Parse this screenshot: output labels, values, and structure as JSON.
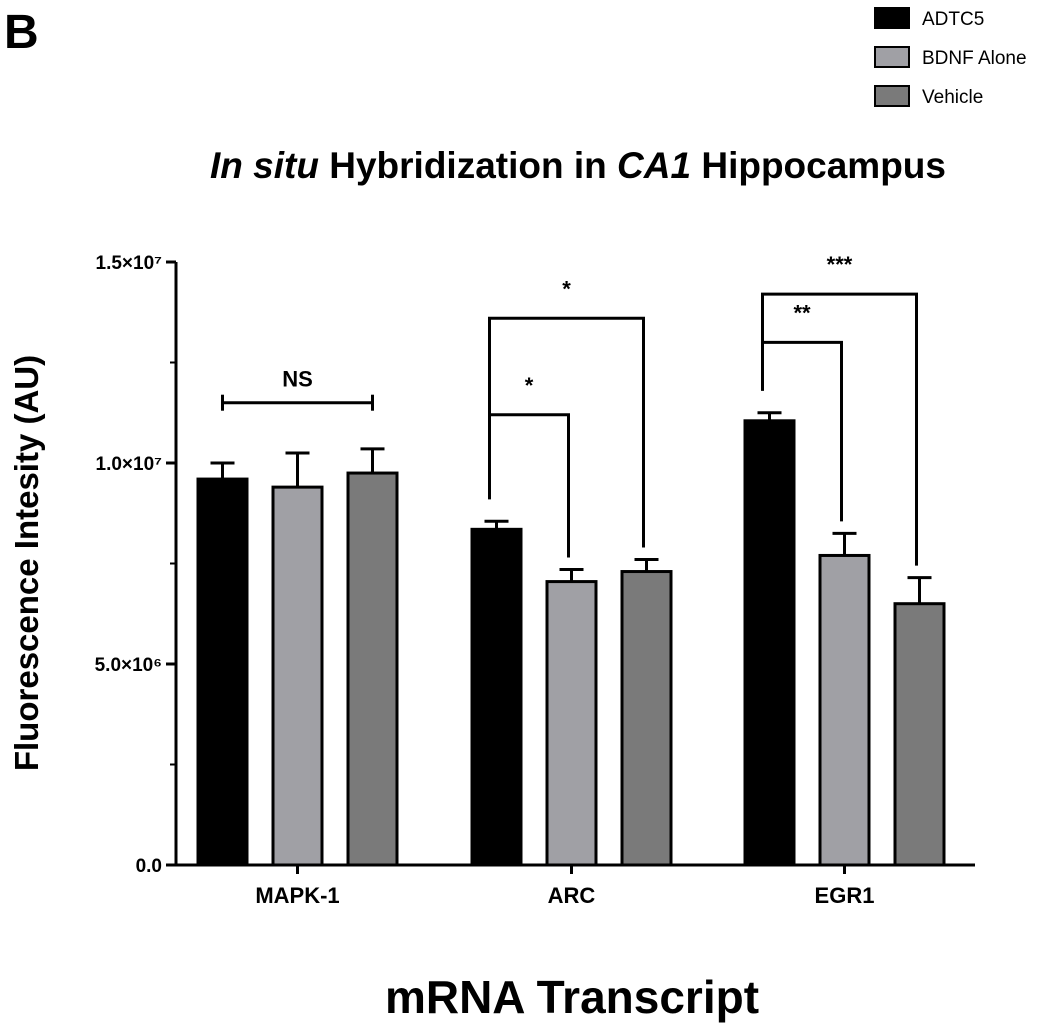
{
  "panel_label": "B",
  "chart_data": {
    "type": "bar",
    "title": {
      "part1": "In situ",
      "part2": " Hybridization in ",
      "part3": "CA1",
      "part4": " Hippocampus"
    },
    "xlabel": "mRNA Transcript",
    "ylabel": "Fluorescence Intesity (AU)",
    "ylim": [
      0,
      15000000
    ],
    "yticks": [
      {
        "value": 0,
        "label": "0.0"
      },
      {
        "value": 5000000,
        "label": "5.0×10⁶"
      },
      {
        "value": 10000000,
        "label": "1.0×10⁷"
      },
      {
        "value": 15000000,
        "label": "1.5×10⁷"
      }
    ],
    "categories": [
      "MAPK-1",
      "ARC",
      "EGR1"
    ],
    "series": [
      {
        "name": "ADTC5",
        "color": "#000000",
        "values": [
          9600000,
          8350000,
          11050000
        ],
        "errors": [
          400000,
          200000,
          200000
        ]
      },
      {
        "name": "BDNF Alone",
        "color": "#a0a0a5",
        "values": [
          9400000,
          7050000,
          7700000
        ],
        "errors": [
          850000,
          300000,
          550000
        ]
      },
      {
        "name": "Vehicle",
        "color": "#7a7a7a",
        "values": [
          9750000,
          7300000,
          6500000
        ],
        "errors": [
          600000,
          300000,
          650000
        ]
      }
    ],
    "legend_position": "top-right",
    "annotations": [
      {
        "type": "bracket-flat",
        "category": 0,
        "from_series": 0,
        "to_series": 2,
        "y": 11500000,
        "label": "NS"
      },
      {
        "type": "bracket-step",
        "category": 1,
        "from_series": 0,
        "to_series": 1,
        "y": 11200000,
        "label": "*"
      },
      {
        "type": "bracket-step",
        "category": 1,
        "from_series": 0,
        "to_series": 2,
        "y": 13600000,
        "label": "*"
      },
      {
        "type": "bracket-step",
        "category": 2,
        "from_series": 0,
        "to_series": 1,
        "y": 13000000,
        "label": "**"
      },
      {
        "type": "bracket-step",
        "category": 2,
        "from_series": 0,
        "to_series": 2,
        "y": 14200000,
        "label": "***"
      }
    ]
  }
}
